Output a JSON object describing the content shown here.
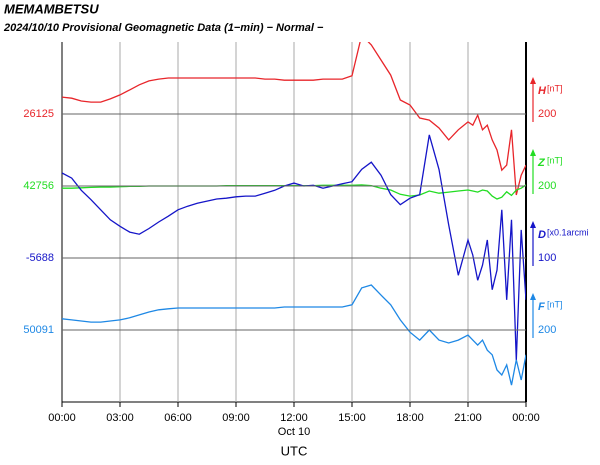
{
  "chart_data": {
    "type": "line",
    "title": "MEMAMBETSU",
    "subtitle": "2024/10/10  Provisional Geomagnetic Data (1−min)  − Normal −",
    "date_label": "Oct 10",
    "xlabel": "UTC",
    "xlim": [
      0,
      24
    ],
    "xticks": [
      {
        "value": 0,
        "label": "00:00"
      },
      {
        "value": 3,
        "label": "03:00"
      },
      {
        "value": 6,
        "label": "06:00"
      },
      {
        "value": 9,
        "label": "09:00"
      },
      {
        "value": 12,
        "label": "12:00"
      },
      {
        "value": 15,
        "label": "15:00"
      },
      {
        "value": 18,
        "label": "18:00"
      },
      {
        "value": 21,
        "label": "21:00"
      },
      {
        "value": 24,
        "label": "00:00"
      }
    ],
    "grid": true,
    "x": [
      0,
      0.5,
      1,
      1.5,
      2,
      2.5,
      3,
      3.5,
      4,
      4.5,
      5,
      5.5,
      6,
      6.5,
      7,
      7.5,
      8,
      8.5,
      9,
      9.5,
      10,
      10.5,
      11,
      11.5,
      12,
      12.5,
      13,
      13.5,
      14,
      14.5,
      15,
      15.5,
      16,
      16.5,
      17,
      17.5,
      18,
      18.5,
      19,
      19.5,
      20,
      20.5,
      21,
      21.25,
      21.5,
      21.75,
      22,
      22.25,
      22.5,
      22.75,
      23,
      23.25,
      23.5,
      23.75,
      24
    ],
    "series": [
      {
        "name": "H",
        "unit": "[nT]",
        "color": "#e8252a",
        "baseline": 26125,
        "scale": 200,
        "values": [
          26172,
          26169,
          26161,
          26158,
          26158,
          26167,
          26178,
          26192,
          26206,
          26217,
          26222,
          26225,
          26225,
          26225,
          26225,
          26225,
          26225,
          26225,
          26225,
          26225,
          26225,
          26222,
          26222,
          26219,
          26219,
          26219,
          26219,
          26222,
          26222,
          26222,
          26231,
          26344,
          26317,
          26275,
          26233,
          26164,
          26150,
          26114,
          26108,
          26086,
          26053,
          26081,
          26103,
          26094,
          26122,
          26081,
          26094,
          26053,
          26025,
          25969,
          25983,
          26081,
          25900,
          25955,
          25983
        ]
      },
      {
        "name": "Z",
        "unit": "[nT]",
        "color": "#22dd22",
        "baseline": 42756,
        "scale": 200,
        "values": [
          42750,
          42750,
          42751,
          42752,
          42753,
          42753,
          42754,
          42755,
          42755,
          42756,
          42756,
          42756,
          42756,
          42756,
          42756,
          42756,
          42756,
          42757,
          42757,
          42757,
          42757,
          42757,
          42757,
          42757,
          42757,
          42757,
          42757,
          42758,
          42758,
          42758,
          42758,
          42759,
          42757,
          42750,
          42745,
          42733,
          42728,
          42731,
          42742,
          42736,
          42739,
          42742,
          42745,
          42742,
          42739,
          42745,
          42742,
          42728,
          42720,
          42725,
          42740,
          42730,
          42745,
          42750,
          42759
        ]
      },
      {
        "name": "D",
        "unit": "[x0.1arcmi",
        "color": "#1515c8",
        "baseline": -5688,
        "scale": 100,
        "values": [
          -5570,
          -5577,
          -5594,
          -5607,
          -5621,
          -5635,
          -5644,
          -5652,
          -5655,
          -5647,
          -5638,
          -5630,
          -5621,
          -5616,
          -5612,
          -5609,
          -5606,
          -5605,
          -5603,
          -5602,
          -5602,
          -5598,
          -5594,
          -5588,
          -5584,
          -5588,
          -5587,
          -5591,
          -5588,
          -5585,
          -5582,
          -5565,
          -5555,
          -5573,
          -5600,
          -5614,
          -5605,
          -5600,
          -5517,
          -5565,
          -5642,
          -5712,
          -5663,
          -5684,
          -5719,
          -5698,
          -5663,
          -5732,
          -5705,
          -5621,
          -5746,
          -5635,
          -5830,
          -5649,
          -5746
        ]
      },
      {
        "name": "F",
        "unit": "[nT]",
        "color": "#1e88e5",
        "baseline": 50091,
        "scale": 200,
        "values": [
          50122,
          50119,
          50116,
          50113,
          50113,
          50116,
          50119,
          50125,
          50133,
          50141,
          50147,
          50150,
          50152,
          50152,
          50152,
          50152,
          50152,
          50152,
          50152,
          50152,
          50152,
          50152,
          50152,
          50155,
          50155,
          50155,
          50155,
          50155,
          50155,
          50155,
          50161,
          50208,
          50216,
          50188,
          50161,
          50119,
          50085,
          50063,
          50091,
          50063,
          50055,
          50063,
          50077,
          50063,
          50049,
          50063,
          50035,
          50022,
          49980,
          49966,
          49994,
          49938,
          50008,
          49952,
          50022
        ]
      }
    ]
  }
}
